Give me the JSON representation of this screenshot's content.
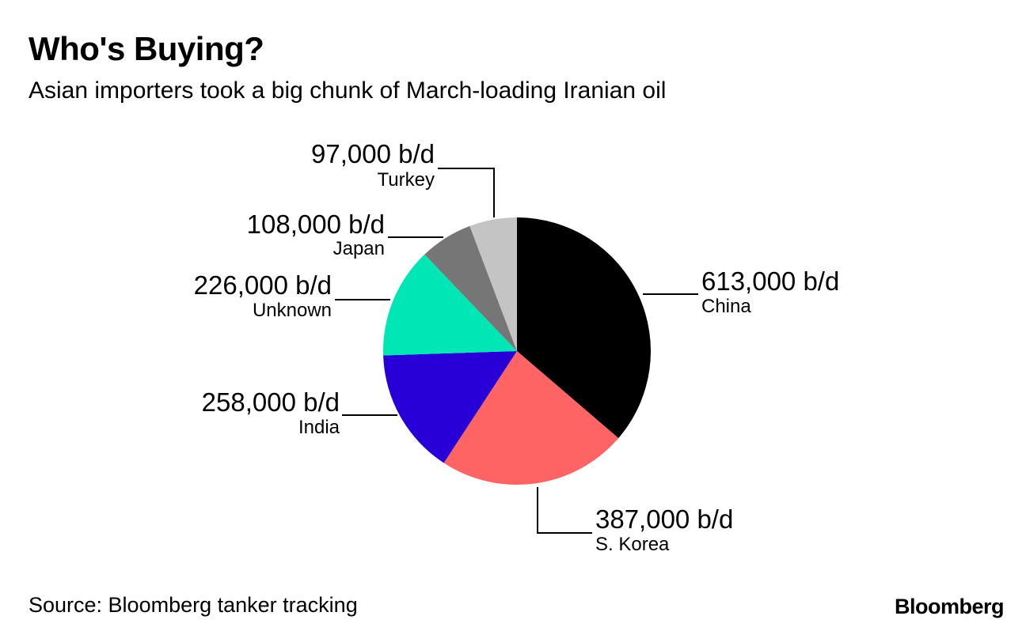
{
  "header": {
    "title": "Who's Buying?",
    "subtitle": "Asian importers took a big chunk of March-loading Iranian oil"
  },
  "footer": {
    "source": "Source: Bloomberg tanker tracking",
    "logo": "Bloomberg"
  },
  "chart_data": {
    "type": "pie",
    "title": "Who's Buying?",
    "subtitle": "Asian importers took a big chunk of March-loading Iranian oil",
    "unit": "b/d",
    "start": "top, clockwise",
    "slices": [
      {
        "label": "China",
        "value": 613000,
        "value_label": "613,000 b/d",
        "color": "#000000"
      },
      {
        "label": "S. Korea",
        "value": 387000,
        "value_label": "387,000 b/d",
        "color": "#ff6464"
      },
      {
        "label": "India",
        "value": 258000,
        "value_label": "258,000 b/d",
        "color": "#2800d7"
      },
      {
        "label": "Unknown",
        "value": 226000,
        "value_label": "226,000 b/d",
        "color": "#00e6b4"
      },
      {
        "label": "Japan",
        "value": 108000,
        "value_label": "108,000 b/d",
        "color": "#767676"
      },
      {
        "label": "Turkey",
        "value": 97000,
        "value_label": "97,000 b/d",
        "color": "#c4c4c4"
      }
    ]
  }
}
